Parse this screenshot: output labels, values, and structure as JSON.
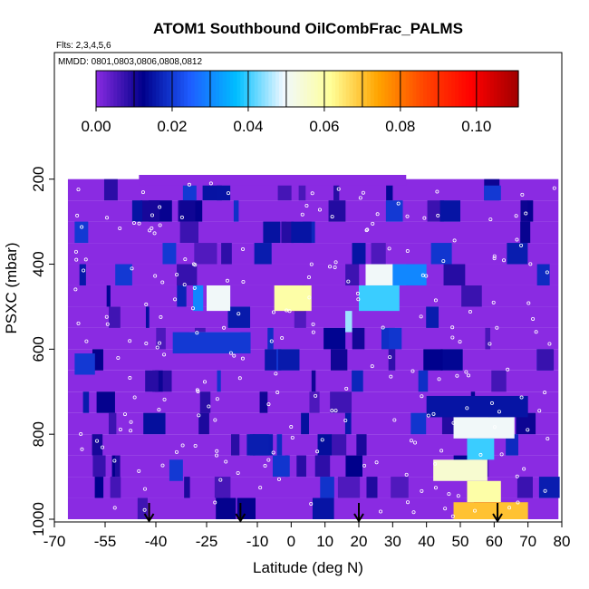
{
  "chart_data": {
    "type": "heatmap",
    "title": "ATOM1 Southbound OilCombFrac_PALMS",
    "flights_note": "Flts: 2,3,4,5,6",
    "dates_note": "MMDD: 0801,0803,0806,0808,0812",
    "xlabel": "Latitude (deg N)",
    "ylabel": "PSXC (mbar)",
    "x_ticks": [
      "-70",
      "-55",
      "-40",
      "-25",
      "-10",
      "0",
      "10",
      "20",
      "30",
      "40",
      "50",
      "60",
      "70",
      "80"
    ],
    "x_tick_values": [
      -70,
      -55,
      -40,
      -25,
      -10,
      0,
      10,
      20,
      30,
      40,
      50,
      60,
      70,
      80
    ],
    "y_ticks": [
      "200",
      "400",
      "600",
      "800",
      "1000"
    ],
    "y_tick_values": [
      200,
      400,
      600,
      800,
      1000
    ],
    "xlim": [
      -70,
      80
    ],
    "ylim": [
      1000,
      100
    ],
    "colorbar": {
      "range": [
        0.0,
        0.111
      ],
      "tick_labels": [
        "0.00",
        "0.02",
        "0.04",
        "0.06",
        "0.08",
        "0.10"
      ],
      "tick_values": [
        0.0,
        0.02,
        0.04,
        0.06,
        0.08,
        0.1
      ],
      "colors": [
        "#8a2be2",
        "#00008b",
        "#1e5cff",
        "#00bfff",
        "#f0f8ff",
        "#ffff99",
        "#ffa500",
        "#ff4500",
        "#ff0000",
        "#a00000"
      ]
    },
    "background_value": 0.0,
    "pressure_bins": [
      200,
      250,
      300,
      350,
      400,
      450,
      500,
      550,
      600,
      650,
      700,
      750,
      800,
      850,
      900,
      950,
      1000
    ],
    "cells": [
      {
        "lat": [
          -45,
          34
        ],
        "p": [
          190,
          215
        ],
        "v": 0.0
      },
      {
        "lat": [
          -32,
          -28
        ],
        "p": [
          215,
          250
        ],
        "v": 0.02
      },
      {
        "lat": [
          -22,
          -18
        ],
        "p": [
          215,
          250
        ],
        "v": 0.015
      },
      {
        "lat": [
          57,
          62
        ],
        "p": [
          215,
          250
        ],
        "v": 0.02
      },
      {
        "lat": [
          -47,
          -44
        ],
        "p": [
          250,
          300
        ],
        "v": 0.015
      },
      {
        "lat": [
          28,
          33
        ],
        "p": [
          250,
          300
        ],
        "v": 0.02
      },
      {
        "lat": [
          44,
          50
        ],
        "p": [
          250,
          300
        ],
        "v": 0.015
      },
      {
        "lat": [
          -64,
          -60
        ],
        "p": [
          300,
          350
        ],
        "v": 0.02
      },
      {
        "lat": [
          0,
          6
        ],
        "p": [
          300,
          350
        ],
        "v": 0.015
      },
      {
        "lat": [
          -38,
          -34
        ],
        "p": [
          350,
          400
        ],
        "v": 0.02
      },
      {
        "lat": [
          18,
          22
        ],
        "p": [
          350,
          400
        ],
        "v": 0.015
      },
      {
        "lat": [
          -52,
          -47
        ],
        "p": [
          400,
          450
        ],
        "v": 0.02
      },
      {
        "lat": [
          22,
          34
        ],
        "p": [
          400,
          450
        ],
        "v": 0.05
      },
      {
        "lat": [
          30,
          40
        ],
        "p": [
          400,
          450
        ],
        "v": 0.03
      },
      {
        "lat": [
          -29,
          -26
        ],
        "p": [
          450,
          510
        ],
        "v": 0.03
      },
      {
        "lat": [
          -25,
          -18
        ],
        "p": [
          450,
          510
        ],
        "v": 0.05
      },
      {
        "lat": [
          -2,
          4
        ],
        "p": [
          450,
          510
        ],
        "v": 0.085
      },
      {
        "lat": [
          -5,
          6
        ],
        "p": [
          450,
          510
        ],
        "v": 0.06
      },
      {
        "lat": [
          20,
          32
        ],
        "p": [
          450,
          510
        ],
        "v": 0.04
      },
      {
        "lat": [
          16,
          18
        ],
        "p": [
          510,
          560
        ],
        "v": 0.045
      },
      {
        "lat": [
          -30,
          -15
        ],
        "p": [
          560,
          610
        ],
        "v": 0.045
      },
      {
        "lat": [
          -35,
          -12
        ],
        "p": [
          560,
          610
        ],
        "v": 0.02
      },
      {
        "lat": [
          -64,
          -58
        ],
        "p": [
          610,
          660
        ],
        "v": 0.02
      },
      {
        "lat": [
          40,
          70
        ],
        "p": [
          710,
          760
        ],
        "v": 0.015
      },
      {
        "lat": [
          48,
          66
        ],
        "p": [
          760,
          810
        ],
        "v": 0.05
      },
      {
        "lat": [
          52,
          60
        ],
        "p": [
          810,
          860
        ],
        "v": 0.04
      },
      {
        "lat": [
          -36,
          -32
        ],
        "p": [
          860,
          910
        ],
        "v": 0.02
      },
      {
        "lat": [
          42,
          58
        ],
        "p": [
          860,
          910
        ],
        "v": 0.055
      },
      {
        "lat": [
          52,
          62
        ],
        "p": [
          910,
          960
        ],
        "v": 0.06
      },
      {
        "lat": [
          54,
          62
        ],
        "p": [
          960,
          1000
        ],
        "v": 0.1
      },
      {
        "lat": [
          48,
          70
        ],
        "p": [
          960,
          1000
        ],
        "v": 0.07
      }
    ],
    "arrows_lat": [
      -42,
      -15,
      20,
      61
    ]
  }
}
